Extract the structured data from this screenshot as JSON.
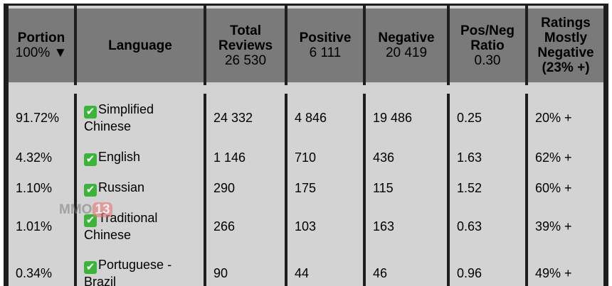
{
  "header": {
    "portion": {
      "title": "Portion",
      "sub": "100% ▼"
    },
    "language": {
      "title": "Language"
    },
    "total": {
      "title": "Total Reviews",
      "sub": "26 530"
    },
    "positive": {
      "title": "Positive",
      "sub": "6 111"
    },
    "negative": {
      "title": "Negative",
      "sub": "20 419"
    },
    "ratio": {
      "title": "Pos/Neg Ratio",
      "sub": "0.30"
    },
    "ratings": {
      "title": "Ratings",
      "sub1": "Mostly Negative",
      "sub2": "(23% +)"
    }
  },
  "rows": [
    {
      "portion": "91.72%",
      "language": "Simplified Chinese",
      "total": "24 332",
      "positive": "4 846",
      "negative": "19 486",
      "ratio": "0.25",
      "rating": "20% +"
    },
    {
      "portion": "4.32%",
      "language": "English",
      "total": "1 146",
      "positive": "710",
      "negative": "436",
      "ratio": "1.63",
      "rating": "62% +"
    },
    {
      "portion": "1.10%",
      "language": "Russian",
      "total": "290",
      "positive": "175",
      "negative": "115",
      "ratio": "1.52",
      "rating": "60% +"
    },
    {
      "portion": "1.01%",
      "language": "Traditional Chinese",
      "total": "266",
      "positive": "103",
      "negative": "163",
      "ratio": "0.63",
      "rating": "39% +"
    },
    {
      "portion": "0.34%",
      "language": "Portuguese - Brazil",
      "total": "90",
      "positive": "44",
      "negative": "46",
      "ratio": "0.96",
      "rating": "49% +"
    }
  ],
  "check_icon": "✔",
  "watermark": {
    "text": "MMO",
    "badge": "13"
  },
  "colors": {
    "header_bg": "#7a7a7a",
    "row_bg": "#d3d3d3",
    "border": "#1e1e1e",
    "check": "#3cb43c"
  }
}
